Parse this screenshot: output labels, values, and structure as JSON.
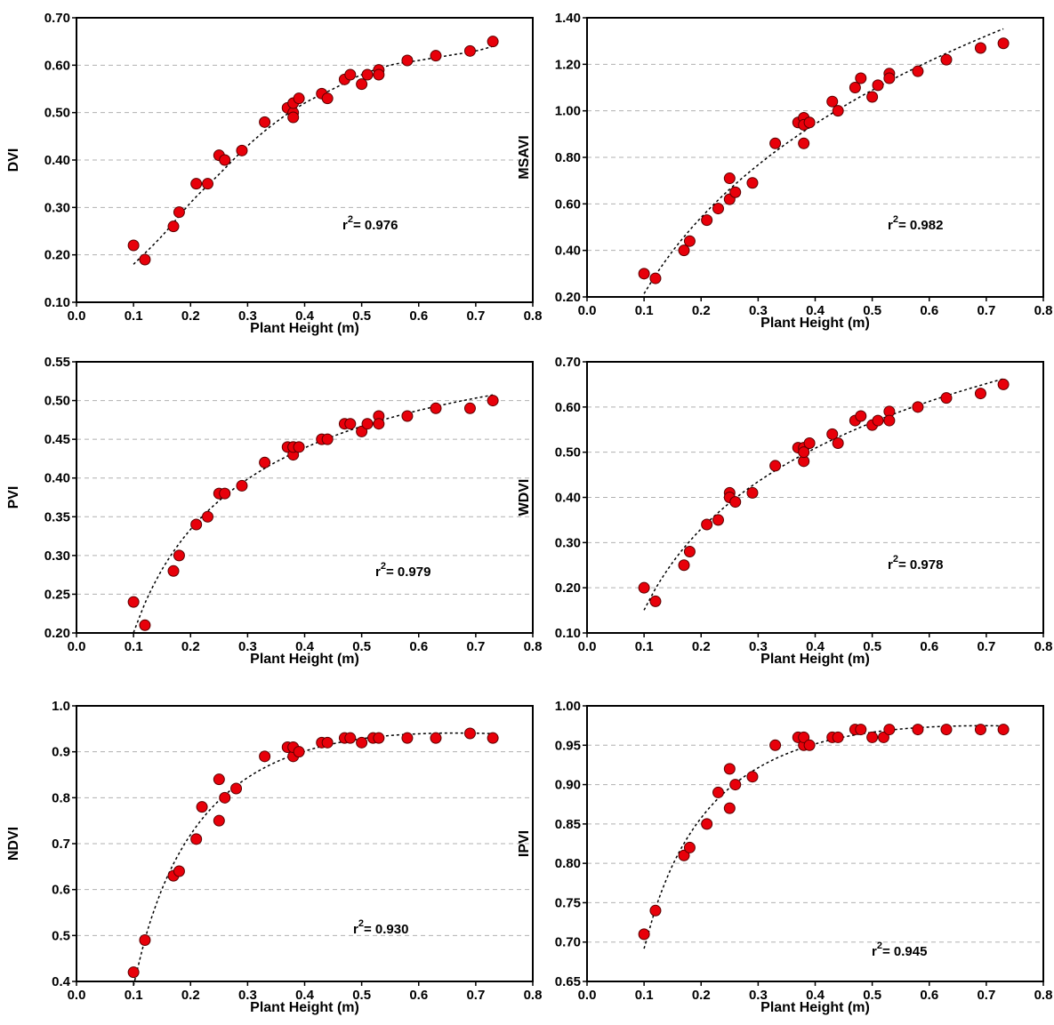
{
  "colors": {
    "marker_fill": "#e8000a",
    "marker_stroke": "#5a0000",
    "grid": "#b0b0b0",
    "fit_line": "#000000",
    "axis": "#000000"
  },
  "chart_data": [
    {
      "type": "scatter",
      "xlabel": "Plant Height (m)",
      "ylabel": "DVI",
      "xlim": [
        0.0,
        0.8
      ],
      "ylim": [
        0.1,
        0.7
      ],
      "xticks": [
        "0.0",
        "0.1",
        "0.2",
        "0.3",
        "0.4",
        "0.5",
        "0.6",
        "0.7",
        "0.8"
      ],
      "yticks": [
        "0.10",
        "0.20",
        "0.30",
        "0.40",
        "0.50",
        "0.60",
        "0.70"
      ],
      "grid": "horizontal dashed",
      "r2_prefix": "r",
      "r2_exp": "2",
      "r2_value": "= 0.976",
      "x": [
        0.1,
        0.12,
        0.17,
        0.18,
        0.21,
        0.23,
        0.25,
        0.26,
        0.29,
        0.33,
        0.37,
        0.38,
        0.38,
        0.38,
        0.39,
        0.43,
        0.44,
        0.47,
        0.48,
        0.5,
        0.51,
        0.53,
        0.53,
        0.58,
        0.63,
        0.69,
        0.73
      ],
      "y": [
        0.22,
        0.19,
        0.26,
        0.29,
        0.35,
        0.35,
        0.41,
        0.4,
        0.42,
        0.48,
        0.51,
        0.5,
        0.49,
        0.52,
        0.53,
        0.54,
        0.53,
        0.57,
        0.58,
        0.56,
        0.58,
        0.59,
        0.58,
        0.61,
        0.62,
        0.63,
        0.65
      ],
      "fit": {
        "x": [
          0.1,
          0.15,
          0.2,
          0.25,
          0.3,
          0.35,
          0.4,
          0.45,
          0.5,
          0.55,
          0.6,
          0.65,
          0.7,
          0.73
        ],
        "y": [
          0.18,
          0.24,
          0.31,
          0.37,
          0.43,
          0.48,
          0.52,
          0.55,
          0.58,
          0.6,
          0.61,
          0.62,
          0.63,
          0.64
        ]
      }
    },
    {
      "type": "scatter",
      "xlabel": "Plant Height (m)",
      "ylabel": "MSAVI",
      "xlim": [
        0.0,
        0.8
      ],
      "ylim": [
        0.2,
        1.4
      ],
      "xticks": [
        "0.0",
        "0.1",
        "0.2",
        "0.3",
        "0.4",
        "0.5",
        "0.6",
        "0.7",
        "0.8"
      ],
      "yticks": [
        "0.20",
        "0.40",
        "0.60",
        "0.80",
        "1.00",
        "1.20",
        "1.40"
      ],
      "grid": "horizontal dashed",
      "r2_prefix": "r",
      "r2_exp": "2",
      "r2_value": "= 0.982",
      "x": [
        0.1,
        0.12,
        0.17,
        0.18,
        0.21,
        0.23,
        0.25,
        0.25,
        0.26,
        0.29,
        0.33,
        0.37,
        0.38,
        0.38,
        0.38,
        0.39,
        0.43,
        0.44,
        0.47,
        0.48,
        0.5,
        0.51,
        0.53,
        0.53,
        0.58,
        0.63,
        0.69,
        0.73
      ],
      "y": [
        0.3,
        0.28,
        0.4,
        0.44,
        0.53,
        0.58,
        0.71,
        0.62,
        0.65,
        0.69,
        0.86,
        0.95,
        0.97,
        0.94,
        0.86,
        0.95,
        1.04,
        1.0,
        1.1,
        1.14,
        1.06,
        1.11,
        1.16,
        1.14,
        1.17,
        1.22,
        1.27,
        1.29
      ]
    },
    {
      "type": "scatter",
      "xlabel": "Plant Height (m)",
      "ylabel": "PVI",
      "xlim": [
        0.0,
        0.8
      ],
      "ylim": [
        0.2,
        0.55
      ],
      "xticks": [
        "0.0",
        "0.1",
        "0.2",
        "0.3",
        "0.4",
        "0.5",
        "0.6",
        "0.7",
        "0.8"
      ],
      "yticks": [
        "0.20",
        "0.25",
        "0.30",
        "0.35",
        "0.40",
        "0.45",
        "0.50",
        "0.55"
      ],
      "grid": "horizontal dashed",
      "r2_prefix": "r",
      "r2_exp": "2",
      "r2_value": "= 0.979",
      "x": [
        0.1,
        0.12,
        0.17,
        0.18,
        0.21,
        0.23,
        0.25,
        0.26,
        0.29,
        0.33,
        0.37,
        0.38,
        0.38,
        0.38,
        0.39,
        0.43,
        0.44,
        0.47,
        0.48,
        0.5,
        0.51,
        0.53,
        0.53,
        0.58,
        0.63,
        0.69,
        0.73
      ],
      "y": [
        0.24,
        0.21,
        0.28,
        0.3,
        0.34,
        0.35,
        0.38,
        0.38,
        0.39,
        0.42,
        0.44,
        0.44,
        0.43,
        0.44,
        0.44,
        0.45,
        0.45,
        0.47,
        0.47,
        0.46,
        0.47,
        0.48,
        0.47,
        0.48,
        0.49,
        0.49,
        0.5
      ]
    },
    {
      "type": "scatter",
      "xlabel": "Plant Height (m)",
      "ylabel": "WDVI",
      "xlim": [
        0.0,
        0.8
      ],
      "ylim": [
        0.1,
        0.7
      ],
      "xticks": [
        "0.0",
        "0.1",
        "0.2",
        "0.3",
        "0.4",
        "0.5",
        "0.6",
        "0.7",
        "0.8"
      ],
      "yticks": [
        "0.10",
        "0.20",
        "0.30",
        "0.40",
        "0.50",
        "0.60",
        "0.70"
      ],
      "grid": "horizontal dashed",
      "r2_prefix": "r",
      "r2_exp": "2",
      "r2_value": "= 0.978",
      "x": [
        0.1,
        0.12,
        0.17,
        0.18,
        0.21,
        0.23,
        0.25,
        0.25,
        0.26,
        0.29,
        0.33,
        0.37,
        0.38,
        0.38,
        0.38,
        0.39,
        0.43,
        0.44,
        0.47,
        0.48,
        0.5,
        0.51,
        0.53,
        0.53,
        0.58,
        0.63,
        0.69,
        0.73
      ],
      "y": [
        0.2,
        0.17,
        0.25,
        0.28,
        0.34,
        0.35,
        0.41,
        0.4,
        0.39,
        0.41,
        0.47,
        0.51,
        0.51,
        0.48,
        0.5,
        0.52,
        0.54,
        0.52,
        0.57,
        0.58,
        0.56,
        0.57,
        0.59,
        0.57,
        0.6,
        0.62,
        0.63,
        0.65
      ]
    },
    {
      "type": "scatter",
      "xlabel": "Plant Height (m)",
      "ylabel": "NDVI",
      "xlim": [
        0.0,
        0.8
      ],
      "ylim": [
        0.4,
        1.0
      ],
      "xticks": [
        "0.0",
        "0.1",
        "0.2",
        "0.3",
        "0.4",
        "0.5",
        "0.6",
        "0.7",
        "0.8"
      ],
      "yticks": [
        "0.4",
        "0.5",
        "0.6",
        "0.7",
        "0.8",
        "0.9",
        "1.0"
      ],
      "grid": "horizontal dashed",
      "r2_prefix": "r",
      "r2_exp": "2",
      "r2_value": "= 0.930",
      "x": [
        0.1,
        0.12,
        0.17,
        0.18,
        0.21,
        0.22,
        0.25,
        0.25,
        0.26,
        0.28,
        0.33,
        0.37,
        0.38,
        0.38,
        0.39,
        0.43,
        0.44,
        0.47,
        0.48,
        0.5,
        0.52,
        0.53,
        0.58,
        0.63,
        0.69,
        0.73
      ],
      "y": [
        0.42,
        0.49,
        0.63,
        0.64,
        0.71,
        0.78,
        0.84,
        0.75,
        0.8,
        0.82,
        0.89,
        0.91,
        0.89,
        0.91,
        0.9,
        0.92,
        0.92,
        0.93,
        0.93,
        0.92,
        0.93,
        0.93,
        0.93,
        0.93,
        0.94,
        0.93
      ]
    },
    {
      "type": "scatter",
      "xlabel": "Plant Height (m)",
      "ylabel": "IPVI",
      "xlim": [
        0.0,
        0.8
      ],
      "ylim": [
        0.65,
        1.0
      ],
      "xticks": [
        "0.0",
        "0.1",
        "0.2",
        "0.3",
        "0.4",
        "0.5",
        "0.6",
        "0.7",
        "0.8"
      ],
      "yticks": [
        "0.65",
        "0.70",
        "0.75",
        "0.80",
        "0.85",
        "0.90",
        "0.95",
        "1.00"
      ],
      "grid": "horizontal dashed",
      "r2_prefix": "r",
      "r2_exp": "2",
      "r2_value": "= 0.945",
      "x": [
        0.1,
        0.12,
        0.17,
        0.18,
        0.21,
        0.23,
        0.25,
        0.25,
        0.26,
        0.29,
        0.33,
        0.37,
        0.38,
        0.38,
        0.39,
        0.43,
        0.44,
        0.47,
        0.48,
        0.5,
        0.52,
        0.53,
        0.58,
        0.63,
        0.69,
        0.73
      ],
      "y": [
        0.71,
        0.74,
        0.81,
        0.82,
        0.85,
        0.89,
        0.92,
        0.87,
        0.9,
        0.91,
        0.95,
        0.96,
        0.95,
        0.96,
        0.95,
        0.96,
        0.96,
        0.97,
        0.97,
        0.96,
        0.96,
        0.97,
        0.97,
        0.97,
        0.97,
        0.97
      ]
    }
  ]
}
